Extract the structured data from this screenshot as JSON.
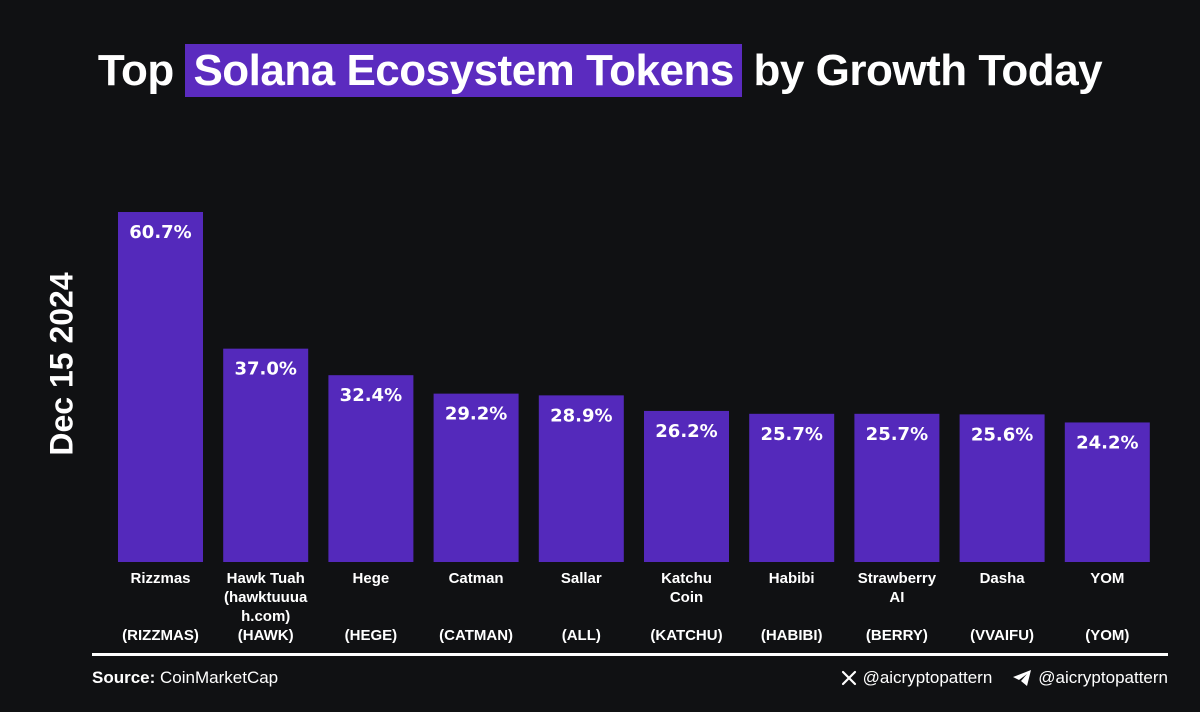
{
  "title": {
    "before": "Top",
    "highlight": "Solana Ecosystem Tokens",
    "after": "by Growth Today"
  },
  "date_label": "Dec 15 2024",
  "colors": {
    "bar": "#5429bb",
    "background": "#101113",
    "highlight": "#5b2bbf"
  },
  "chart_data": {
    "type": "bar",
    "title": "Top Solana Ecosystem Tokens by Growth Today",
    "categories": [
      {
        "name": [
          "Rizzmas"
        ],
        "ticker": "(RIZZMAS)"
      },
      {
        "name": [
          "Hawk Tuah",
          "(hawktuuua",
          "h.com)"
        ],
        "ticker": "(HAWK)"
      },
      {
        "name": [
          "Hege"
        ],
        "ticker": "(HEGE)"
      },
      {
        "name": [
          "Catman"
        ],
        "ticker": "(CATMAN)"
      },
      {
        "name": [
          "Sallar"
        ],
        "ticker": "(ALL)"
      },
      {
        "name": [
          "Katchu",
          "Coin"
        ],
        "ticker": "(KATCHU)"
      },
      {
        "name": [
          "Habibi"
        ],
        "ticker": "(HABIBI)"
      },
      {
        "name": [
          "Strawberry",
          "AI"
        ],
        "ticker": "(BERRY)"
      },
      {
        "name": [
          "Dasha"
        ],
        "ticker": "(VVAIFU)"
      },
      {
        "name": [
          "YOM"
        ],
        "ticker": "(YOM)"
      }
    ],
    "values": [
      60.7,
      37.0,
      32.4,
      29.2,
      28.9,
      26.2,
      25.7,
      25.7,
      25.6,
      24.2
    ],
    "value_labels": [
      "60.7%",
      "37.0%",
      "32.4%",
      "29.2%",
      "28.9%",
      "26.2%",
      "25.7%",
      "25.7%",
      "25.6%",
      "24.2%"
    ],
    "ylim": [
      0,
      60.7
    ],
    "grid": false,
    "legend": "none"
  },
  "footer": {
    "source_label": "Source:",
    "source_value": "CoinMarketCap",
    "x_handle": "@aicryptopattern",
    "telegram_handle": "@aicryptopattern",
    "x_icon": "x-icon",
    "telegram_icon": "telegram-icon"
  }
}
